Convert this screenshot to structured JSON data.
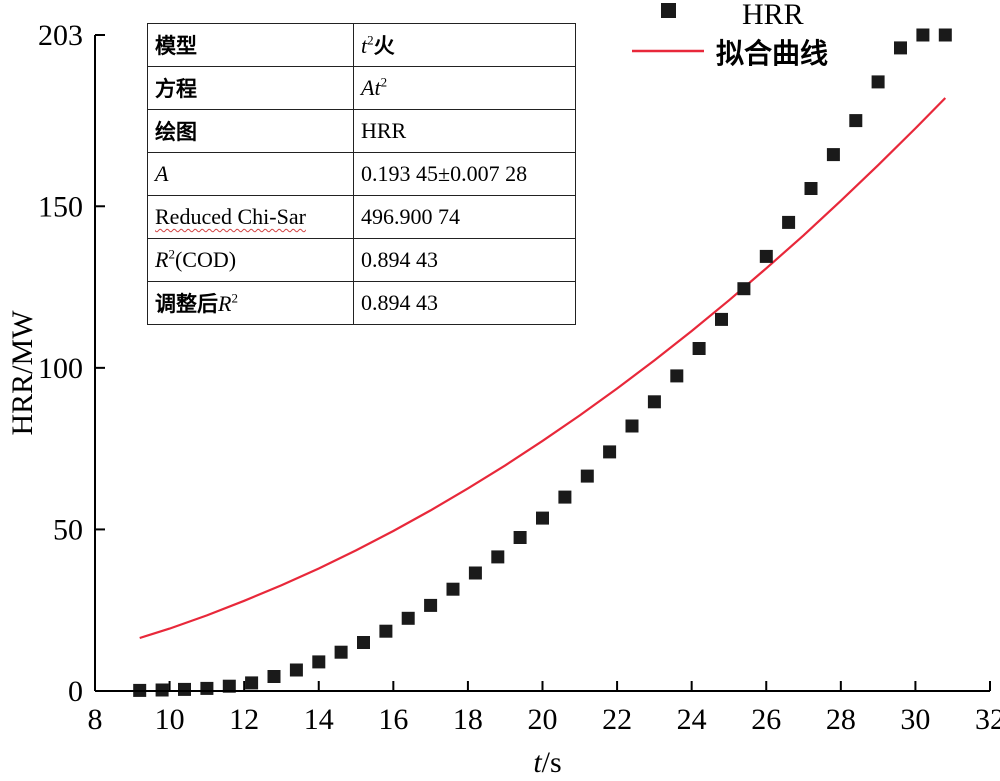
{
  "chart_data": {
    "type": "scatter",
    "xlabel": {
      "italic": "t",
      "rest": "/s"
    },
    "ylabel": "HRR/MW",
    "xlim": [
      8,
      32
    ],
    "ylim": [
      0,
      203
    ],
    "x_ticks": [
      "8",
      "10",
      "12",
      "14",
      "16",
      "18",
      "20",
      "22",
      "24",
      "26",
      "28",
      "30",
      "32"
    ],
    "y_ticks": [
      "0",
      "50",
      "100",
      "150",
      "203"
    ],
    "legend_position": "top-right",
    "series": [
      {
        "name": "HRR",
        "kind": "scatter",
        "marker": "square",
        "color": "#1a1a1a",
        "x": [
          9.2,
          9.8,
          10.4,
          11.0,
          11.6,
          12.2,
          12.8,
          13.4,
          14.0,
          14.6,
          15.2,
          15.8,
          16.4,
          17.0,
          17.6,
          18.2,
          18.8,
          19.4,
          20.0,
          20.6,
          21.2,
          21.8,
          22.4,
          23.0,
          23.6,
          24.2,
          24.8,
          25.4,
          26.0,
          26.6,
          27.2,
          27.8,
          28.4,
          29.0,
          29.6,
          30.2,
          30.8
        ],
        "y": [
          0.2,
          0.3,
          0.5,
          0.8,
          1.5,
          2.5,
          4.5,
          6.5,
          9.0,
          12.0,
          15.0,
          18.5,
          22.5,
          26.5,
          31.5,
          36.5,
          41.5,
          47.5,
          53.5,
          60.0,
          66.5,
          74.0,
          82.0,
          89.5,
          97.5,
          106.0,
          115.0,
          124.5,
          134.5,
          145.0,
          155.5,
          166.0,
          176.5,
          188.5,
          199.0,
          203.0,
          203.0
        ]
      },
      {
        "name": "拟合曲线",
        "kind": "line",
        "color": "#e8283a",
        "x": [
          9.2,
          10,
          11,
          12,
          13,
          14,
          15,
          16,
          17,
          18,
          19,
          20,
          21,
          22,
          23,
          24,
          25,
          26,
          27,
          28,
          29,
          30,
          30.8
        ],
        "y": [
          16.4,
          19.3,
          23.4,
          27.9,
          32.7,
          37.9,
          43.5,
          49.5,
          55.9,
          62.7,
          69.8,
          77.4,
          85.3,
          93.6,
          102.3,
          111.4,
          120.9,
          130.8,
          141.0,
          151.7,
          162.7,
          174.1,
          183.5
        ]
      }
    ]
  },
  "stats_table": {
    "rows": [
      {
        "label": "模型",
        "value_italic": "t",
        "value_sup": "2",
        "value_rest": "火"
      },
      {
        "label": "方程",
        "value_italic": "At",
        "value_sup": "2",
        "value_rest": ""
      },
      {
        "label": "绘图",
        "value": "HRR"
      },
      {
        "label_italic": "A",
        "value": "0.193 45±0.007 28"
      },
      {
        "label": "Reduced Chi-Sar",
        "value": "496.900 74"
      },
      {
        "label_italic": "R",
        "label_sup": "2",
        "label_rest": "(COD)",
        "value": "0.894 43"
      },
      {
        "label": "调整后",
        "label_italic": "R",
        "label_sup": "2",
        "value": "0.894 43"
      }
    ]
  }
}
